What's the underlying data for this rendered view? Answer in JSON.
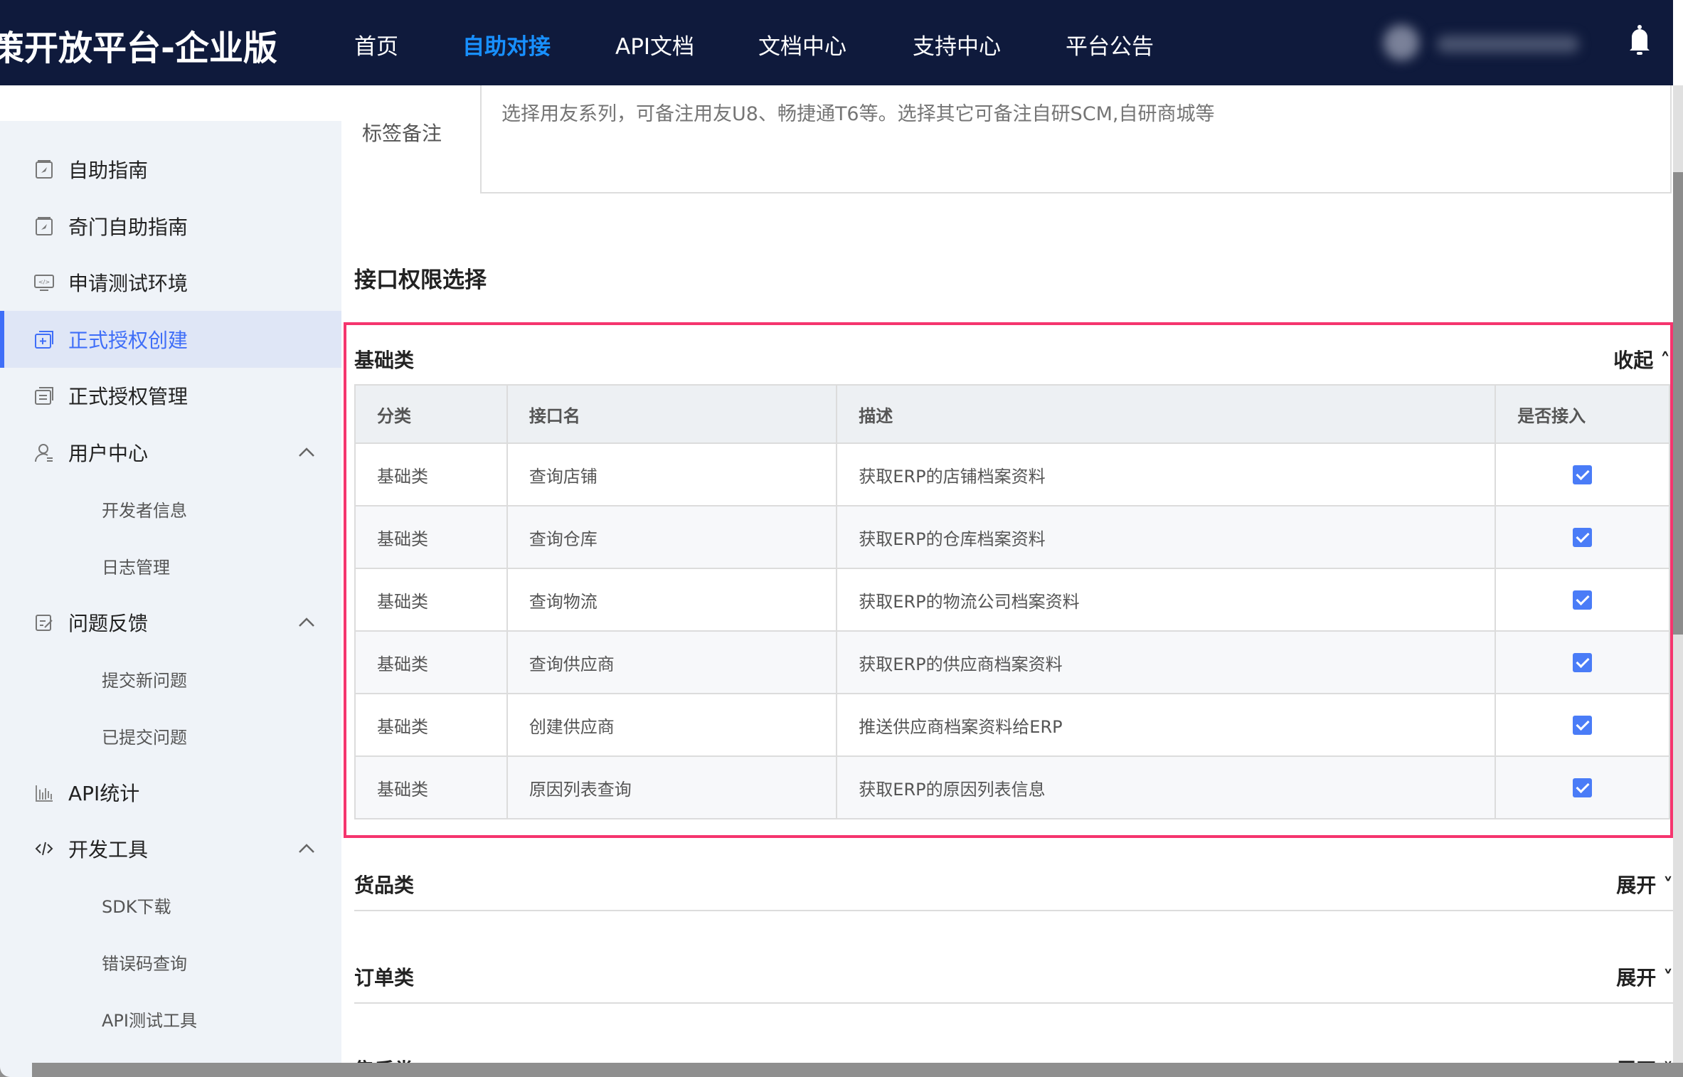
{
  "header": {
    "brand": "策开放平台-企业版",
    "nav": [
      "首页",
      "自助对接",
      "API文档",
      "文档中心",
      "支持中心",
      "平台公告"
    ],
    "active_nav": "自助对接",
    "accent": "#1890ff"
  },
  "sidebar": {
    "items": [
      {
        "label": "自助指南",
        "icon": "guide-icon"
      },
      {
        "label": "奇门自助指南",
        "icon": "guide-icon"
      },
      {
        "label": "申请测试环境",
        "icon": "monitor-code-icon"
      },
      {
        "label": "正式授权创建",
        "icon": "add-window-icon",
        "active": true
      },
      {
        "label": "正式授权管理",
        "icon": "swap-window-icon"
      },
      {
        "label": "用户中心",
        "icon": "user-icon",
        "expanded": true
      },
      {
        "label": "开发者信息",
        "sub": true
      },
      {
        "label": "日志管理",
        "sub": true
      },
      {
        "label": "问题反馈",
        "icon": "edit-icon",
        "expanded": true
      },
      {
        "label": "提交新问题",
        "sub": true
      },
      {
        "label": "已提交问题",
        "sub": true
      },
      {
        "label": "API统计",
        "icon": "bar-chart-icon"
      },
      {
        "label": "开发工具",
        "icon": "code-icon",
        "expanded": true
      },
      {
        "label": "SDK下载",
        "sub": true
      },
      {
        "label": "错误码查询",
        "sub": true
      },
      {
        "label": "API测试工具",
        "sub": true
      }
    ],
    "active_color": "#3f6ef8"
  },
  "form": {
    "tag_label": "标签备注",
    "tag_placeholder": "选择用友系列，可备注用友U8、畅捷通T6等。选择其它可备注自研SCM,自研商城等",
    "perm_title": "接口权限选择"
  },
  "basic": {
    "title": "基础类",
    "toggle": "收起",
    "columns": [
      "分类",
      "接口名",
      "描述",
      "是否接入"
    ],
    "rows": [
      [
        "基础类",
        "查询店铺",
        "获取ERP的店铺档案资料",
        true
      ],
      [
        "基础类",
        "查询仓库",
        "获取ERP的仓库档案资料",
        true
      ],
      [
        "基础类",
        "查询物流",
        "获取ERP的物流公司档案资料",
        true
      ],
      [
        "基础类",
        "查询供应商",
        "获取ERP的供应商档案资料",
        true
      ],
      [
        "基础类",
        "创建供应商",
        "推送供应商档案资料给ERP",
        true
      ],
      [
        "基础类",
        "原因列表查询",
        "获取ERP的原因列表信息",
        true
      ]
    ]
  },
  "sections": [
    {
      "title": "货品类",
      "toggle": "展开"
    },
    {
      "title": "订单类",
      "toggle": "展开"
    },
    {
      "title": "售后类",
      "toggle": "展开"
    }
  ],
  "highlight_color": "#f5356e"
}
